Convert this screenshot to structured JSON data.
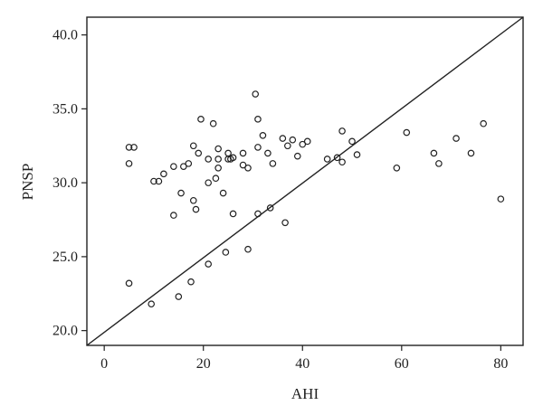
{
  "chart_data": {
    "type": "scatter",
    "title": "",
    "xlabel": "AHI",
    "ylabel": "PNSP",
    "xlim": [
      -3.5,
      84.5
    ],
    "ylim": [
      19.0,
      41.2
    ],
    "xticks": [
      "0",
      "20",
      "40",
      "60",
      "80"
    ],
    "yticks": [
      "20.0",
      "25.0",
      "30.0",
      "35.0",
      "40.0"
    ],
    "reference_line": {
      "description": "diagonal line",
      "from": [
        -3.5,
        19.0
      ],
      "to": [
        84.5,
        41.2
      ]
    },
    "grid": false,
    "points": [
      {
        "x": 5.0,
        "y": 32.4
      },
      {
        "x": 5.0,
        "y": 31.3
      },
      {
        "x": 5.0,
        "y": 23.2
      },
      {
        "x": 6.0,
        "y": 32.4
      },
      {
        "x": 9.5,
        "y": 21.8
      },
      {
        "x": 10.0,
        "y": 30.1
      },
      {
        "x": 11.0,
        "y": 30.1
      },
      {
        "x": 12.0,
        "y": 30.6
      },
      {
        "x": 14.0,
        "y": 31.1
      },
      {
        "x": 14.0,
        "y": 27.8
      },
      {
        "x": 15.0,
        "y": 22.3
      },
      {
        "x": 15.5,
        "y": 29.3
      },
      {
        "x": 16.0,
        "y": 31.1
      },
      {
        "x": 17.0,
        "y": 31.3
      },
      {
        "x": 17.5,
        "y": 23.3
      },
      {
        "x": 18.0,
        "y": 32.5
      },
      {
        "x": 18.0,
        "y": 28.8
      },
      {
        "x": 18.5,
        "y": 28.2
      },
      {
        "x": 19.0,
        "y": 32.0
      },
      {
        "x": 19.5,
        "y": 34.3
      },
      {
        "x": 21.0,
        "y": 31.6
      },
      {
        "x": 21.0,
        "y": 30.0
      },
      {
        "x": 21.0,
        "y": 24.5
      },
      {
        "x": 22.0,
        "y": 34.0
      },
      {
        "x": 22.5,
        "y": 30.3
      },
      {
        "x": 23.0,
        "y": 32.3
      },
      {
        "x": 23.0,
        "y": 31.6
      },
      {
        "x": 23.0,
        "y": 31.0
      },
      {
        "x": 24.0,
        "y": 29.3
      },
      {
        "x": 24.5,
        "y": 25.3
      },
      {
        "x": 25.0,
        "y": 32.0
      },
      {
        "x": 25.0,
        "y": 31.6
      },
      {
        "x": 25.5,
        "y": 31.6
      },
      {
        "x": 26.0,
        "y": 31.7
      },
      {
        "x": 26.0,
        "y": 27.9
      },
      {
        "x": 28.0,
        "y": 32.0
      },
      {
        "x": 28.0,
        "y": 31.2
      },
      {
        "x": 29.0,
        "y": 31.0
      },
      {
        "x": 29.0,
        "y": 25.5
      },
      {
        "x": 30.5,
        "y": 36.0
      },
      {
        "x": 31.0,
        "y": 34.3
      },
      {
        "x": 31.0,
        "y": 32.4
      },
      {
        "x": 31.0,
        "y": 27.9
      },
      {
        "x": 32.0,
        "y": 33.2
      },
      {
        "x": 33.0,
        "y": 32.0
      },
      {
        "x": 33.5,
        "y": 28.3
      },
      {
        "x": 34.0,
        "y": 31.3
      },
      {
        "x": 36.0,
        "y": 33.0
      },
      {
        "x": 36.5,
        "y": 27.3
      },
      {
        "x": 37.0,
        "y": 32.5
      },
      {
        "x": 38.0,
        "y": 32.9
      },
      {
        "x": 39.0,
        "y": 31.8
      },
      {
        "x": 40.0,
        "y": 32.6
      },
      {
        "x": 41.0,
        "y": 32.8
      },
      {
        "x": 45.0,
        "y": 31.6
      },
      {
        "x": 47.0,
        "y": 31.7
      },
      {
        "x": 48.0,
        "y": 33.5
      },
      {
        "x": 48.0,
        "y": 31.4
      },
      {
        "x": 50.0,
        "y": 32.8
      },
      {
        "x": 51.0,
        "y": 31.9
      },
      {
        "x": 59.0,
        "y": 31.0
      },
      {
        "x": 61.0,
        "y": 33.4
      },
      {
        "x": 66.5,
        "y": 32.0
      },
      {
        "x": 67.5,
        "y": 31.3
      },
      {
        "x": 71.0,
        "y": 33.0
      },
      {
        "x": 74.0,
        "y": 32.0
      },
      {
        "x": 76.5,
        "y": 34.0
      },
      {
        "x": 80.0,
        "y": 28.9
      }
    ]
  }
}
